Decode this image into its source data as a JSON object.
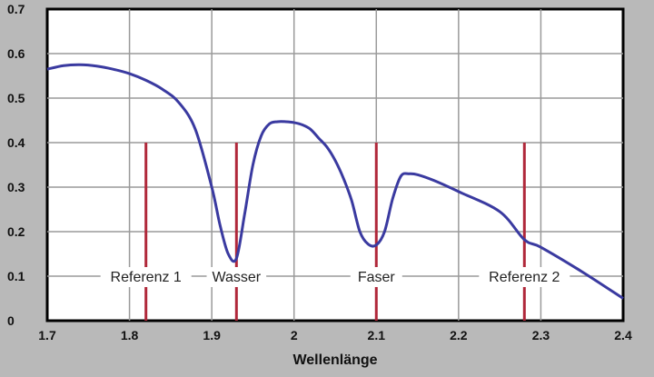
{
  "chart_data": {
    "type": "line",
    "title": "",
    "xlabel": "Wellenlänge",
    "ylabel": "",
    "xlim": [
      1.7,
      2.4
    ],
    "ylim": [
      0,
      0.7
    ],
    "x_tick_labels": [
      "1.7",
      "1.8",
      "1.9",
      "2",
      "2.1",
      "2.2",
      "2.3",
      "2.4"
    ],
    "y_tick_labels": [
      "0",
      "0.1",
      "0.2",
      "0.3",
      "0.4",
      "0.5",
      "0.6",
      "0.7"
    ],
    "grid": true,
    "colors": {
      "curve": "#3a3aa0",
      "markers": "#b0283a",
      "plot_bg": "#ffffff",
      "page_bg": "#b9b9b9"
    },
    "series": [
      {
        "x": [
          1.7,
          1.72,
          1.74,
          1.76,
          1.78,
          1.8,
          1.82,
          1.84,
          1.86,
          1.88,
          1.9,
          1.91,
          1.92,
          1.93,
          1.94,
          1.95,
          1.96,
          1.97,
          1.98,
          1.99,
          2.0,
          2.01,
          2.02,
          2.03,
          2.04,
          2.05,
          2.06,
          2.07,
          2.08,
          2.09,
          2.1,
          2.11,
          2.12,
          2.13,
          2.14,
          2.15,
          2.17,
          2.2,
          2.25,
          2.28,
          2.3,
          2.35,
          2.4
        ],
        "y": [
          0.565,
          0.573,
          0.575,
          0.572,
          0.565,
          0.555,
          0.54,
          0.52,
          0.49,
          0.43,
          0.3,
          0.215,
          0.15,
          0.14,
          0.24,
          0.35,
          0.415,
          0.442,
          0.447,
          0.447,
          0.445,
          0.44,
          0.43,
          0.41,
          0.39,
          0.36,
          0.32,
          0.27,
          0.2,
          0.172,
          0.17,
          0.2,
          0.275,
          0.325,
          0.33,
          0.328,
          0.315,
          0.29,
          0.245,
          0.182,
          0.165,
          0.11,
          0.05
        ]
      }
    ],
    "markers": [
      {
        "x": 1.82,
        "y_top": 0.4,
        "label": "Referenz 1"
      },
      {
        "x": 1.93,
        "y_top": 0.4,
        "label": "Wasser"
      },
      {
        "x": 2.1,
        "y_top": 0.4,
        "label": "Faser"
      },
      {
        "x": 2.28,
        "y_top": 0.4,
        "label": "Referenz 2"
      }
    ]
  }
}
